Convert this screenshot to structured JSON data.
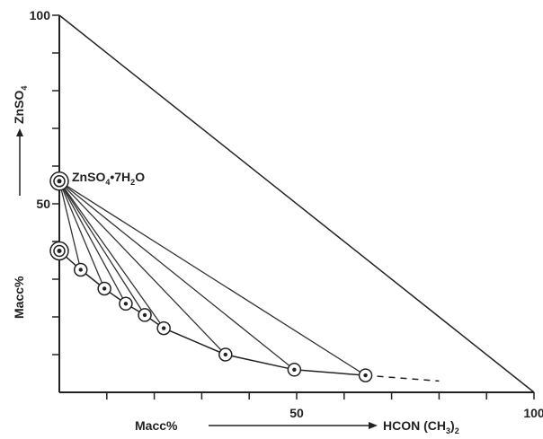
{
  "chart_data": {
    "type": "scatter",
    "title": "",
    "xlabel_left": "Macc%",
    "xlabel_right": "HCON (CH",
    "xlabel_right_sub": "3",
    "xlabel_right_close": ")",
    "xlabel_right_sub2": "2",
    "ylabel_top": "ZnSO",
    "ylabel_top_sub": "4",
    "ylabel_bottom": "Macc%",
    "xlim": [
      0,
      100
    ],
    "ylim": [
      0,
      100
    ],
    "x_tick_labels": [
      {
        "value": 50,
        "label": "50"
      },
      {
        "value": 100,
        "label": "100"
      }
    ],
    "y_tick_labels": [
      {
        "value": 50,
        "label": "50"
      },
      {
        "value": 100,
        "label": "100"
      }
    ],
    "minor_ticks": [
      10,
      20,
      30,
      40,
      60,
      70,
      80,
      90
    ],
    "hypotenuse": [
      [
        0,
        100
      ],
      [
        100,
        0
      ]
    ],
    "solid_phase": {
      "name": "ZnSO4•7H2O",
      "label_main": "ZnSO",
      "label_sub1": "4",
      "label_mid": "•7H",
      "label_sub2": "2",
      "label_end": "O",
      "point": [
        0,
        56
      ]
    },
    "invariant_point": [
      0,
      37.5
    ],
    "solubility_curve": [
      [
        0,
        37.5
      ],
      [
        4.5,
        32.5
      ],
      [
        9.5,
        27.5
      ],
      [
        14,
        23.5
      ],
      [
        18,
        20.5
      ],
      [
        22,
        17
      ],
      [
        35,
        10
      ],
      [
        49.5,
        6
      ],
      [
        64.5,
        4.5
      ]
    ],
    "dashed_extension": [
      [
        64.5,
        4.5
      ],
      [
        80,
        3
      ]
    ],
    "tie_lines_to": [
      [
        4.5,
        32.5
      ],
      [
        9.5,
        27.5
      ],
      [
        14,
        23.5
      ],
      [
        18,
        20.5
      ],
      [
        22,
        17
      ],
      [
        35,
        10
      ],
      [
        49.5,
        6
      ],
      [
        64.5,
        4.5
      ]
    ],
    "grid": false
  }
}
